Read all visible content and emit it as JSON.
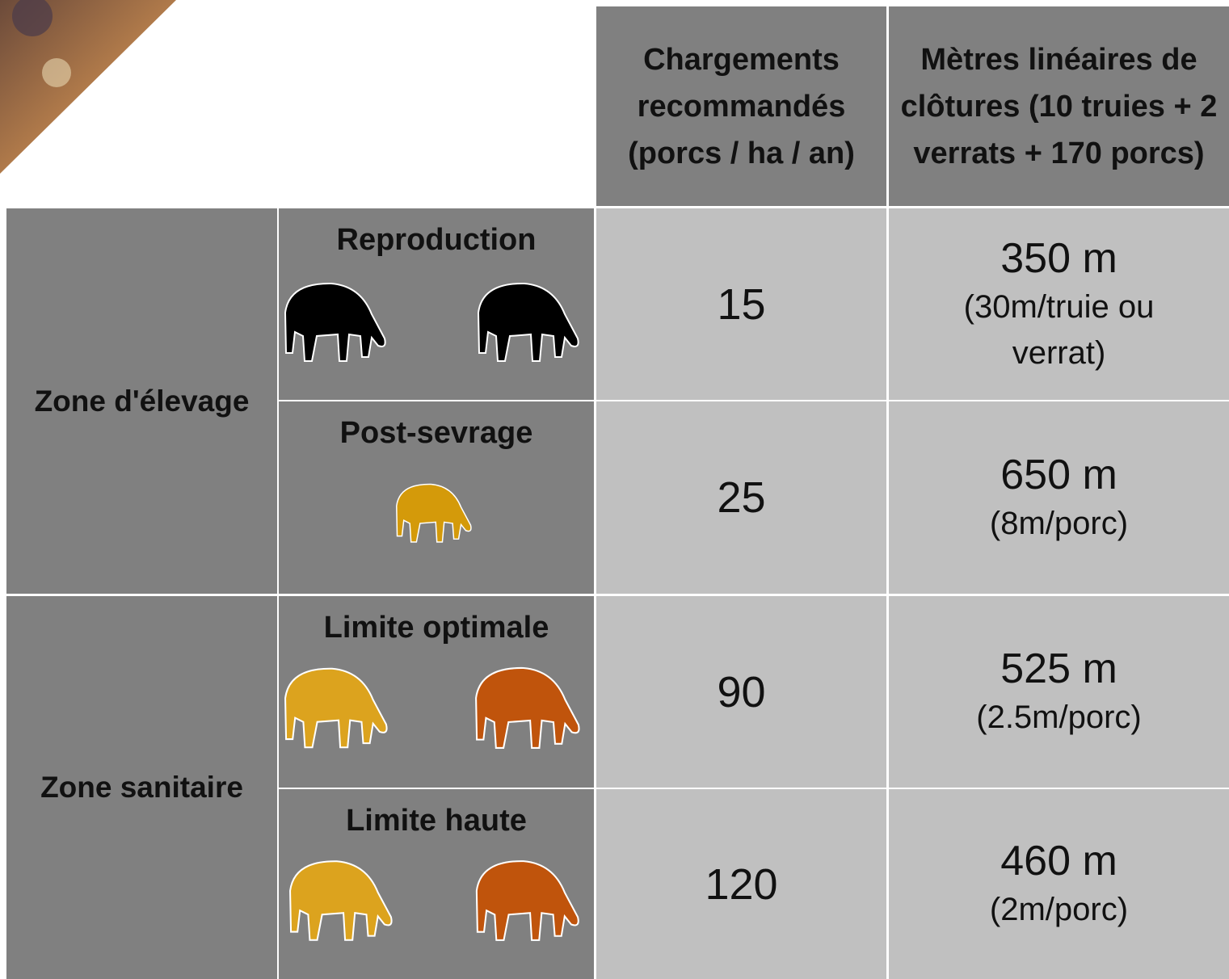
{
  "table": {
    "header": [
      "Chargements recommandés (porcs / ha / an)",
      "Mètres linéaires de clôtures (10 truies + 2 verrats + 170 porcs)"
    ],
    "zones": [
      {
        "label": "Zone d'élevage",
        "rows": [
          {
            "label": "Reproduction",
            "stocking": 15,
            "fence": "350 m",
            "fence_note": "(30m/truie ou verrat)"
          },
          {
            "label": "Post-sevrage",
            "stocking": 25,
            "fence": "650 m",
            "fence_note": "(8m/porc)"
          }
        ]
      },
      {
        "label": "Zone sanitaire",
        "rows": [
          {
            "label": "Limite optimale",
            "stocking": 90,
            "fence": "525 m",
            "fence_note": "(2.5m/porc)"
          },
          {
            "label": "Limite haute",
            "stocking": 120,
            "fence": "460 m",
            "fence_note": "(2m/porc)"
          }
        ]
      }
    ]
  }
}
